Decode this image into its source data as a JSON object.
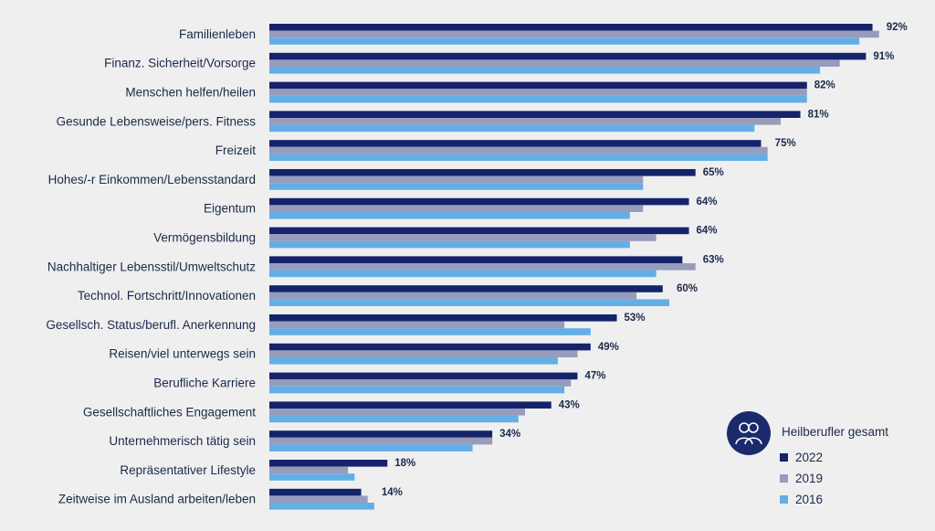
{
  "chart_data": {
    "type": "bar",
    "orientation": "horizontal",
    "title": "",
    "xlabel": "",
    "ylabel": "",
    "xlim": [
      0,
      100
    ],
    "grid": false,
    "legend_position": "bottom-right",
    "categories": [
      "Familienleben",
      "Finanz. Sicherheit/Vorsorge",
      "Menschen helfen/heilen",
      "Gesunde Lebensweise/pers. Fitness",
      "Freizeit",
      "Hohes/-r Einkommen/Lebensstandard",
      "Eigentum",
      "Vermögensbildung",
      "Nachhaltiger Lebensstil/Umweltschutz",
      "Technol. Fortschritt/Innovationen",
      "Gesellsch. Status/berufl. Anerkennung",
      "Reisen/viel unterwegs sein",
      "Berufliche Karriere",
      "Gesellschaftliches Engagement",
      "Unternehmerisch tätig sein",
      "Repräsentativer Lifestyle",
      "Zeitweise im Ausland arbeiten/leben"
    ],
    "value_labels": [
      "92%",
      "91%",
      "82%",
      "81%",
      "75%",
      "65%",
      "64%",
      "64%",
      "63%",
      "60%",
      "53%",
      "49%",
      "47%",
      "43%",
      "34%",
      "18%",
      "14%"
    ],
    "series": [
      {
        "name": "2022",
        "color": "#15236b",
        "values": [
          92,
          91,
          82,
          81,
          75,
          65,
          64,
          64,
          63,
          60,
          53,
          49,
          47,
          43,
          34,
          18,
          14
        ]
      },
      {
        "name": "2019",
        "color": "#979cbc",
        "values": [
          93,
          87,
          82,
          78,
          76,
          57,
          57,
          59,
          65,
          56,
          45,
          47,
          46,
          39,
          34,
          12,
          15
        ]
      },
      {
        "name": "2016",
        "color": "#64aee6",
        "values": [
          90,
          84,
          82,
          74,
          76,
          57,
          55,
          55,
          59,
          61,
          49,
          44,
          45,
          38,
          31,
          13,
          16
        ]
      }
    ]
  },
  "legend": {
    "title": "Heilberufler gesamt",
    "icon": "people-icon"
  }
}
